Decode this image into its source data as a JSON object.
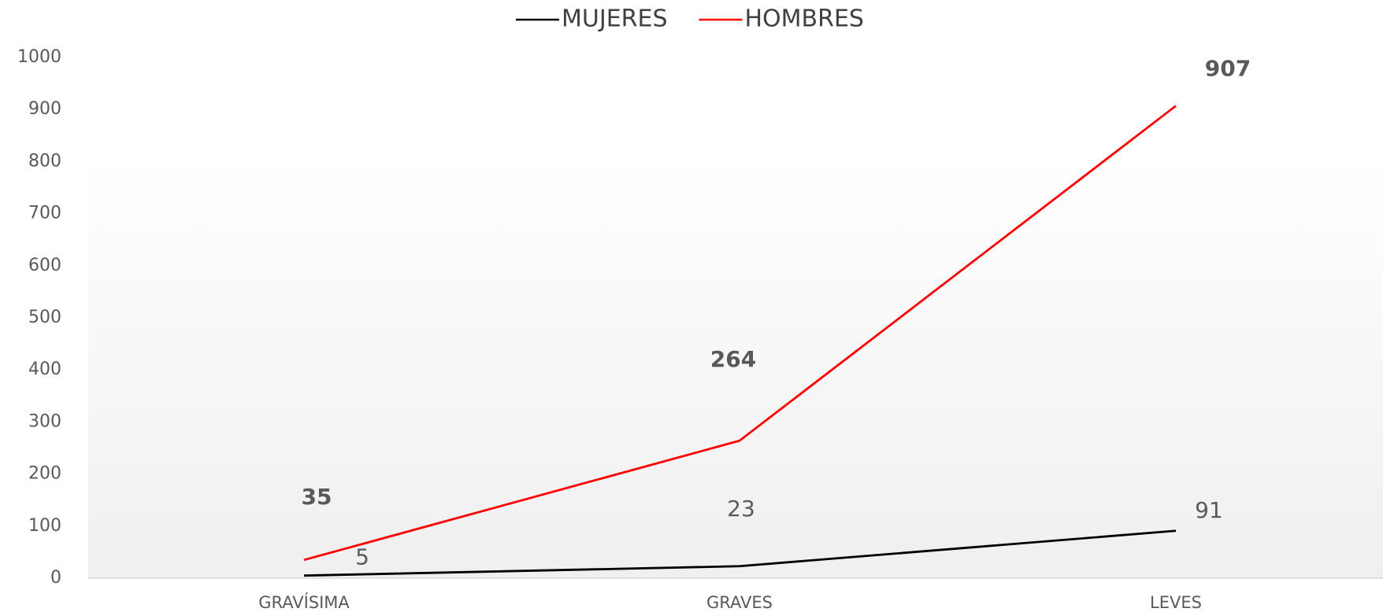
{
  "chart_data": {
    "type": "line",
    "categories": [
      "GRAVÍSIMA",
      "GRAVES",
      "LEVES"
    ],
    "series": [
      {
        "name": "MUJERES",
        "color": "#000000",
        "values": [
          5,
          23,
          91
        ]
      },
      {
        "name": "HOMBRES",
        "color": "#ff0000",
        "values": [
          35,
          264,
          907
        ]
      }
    ],
    "ylim": [
      0,
      1000
    ],
    "yticks": [
      0,
      100,
      200,
      300,
      400,
      500,
      600,
      700,
      800,
      900,
      1000
    ],
    "grid": false,
    "legend": "top"
  }
}
